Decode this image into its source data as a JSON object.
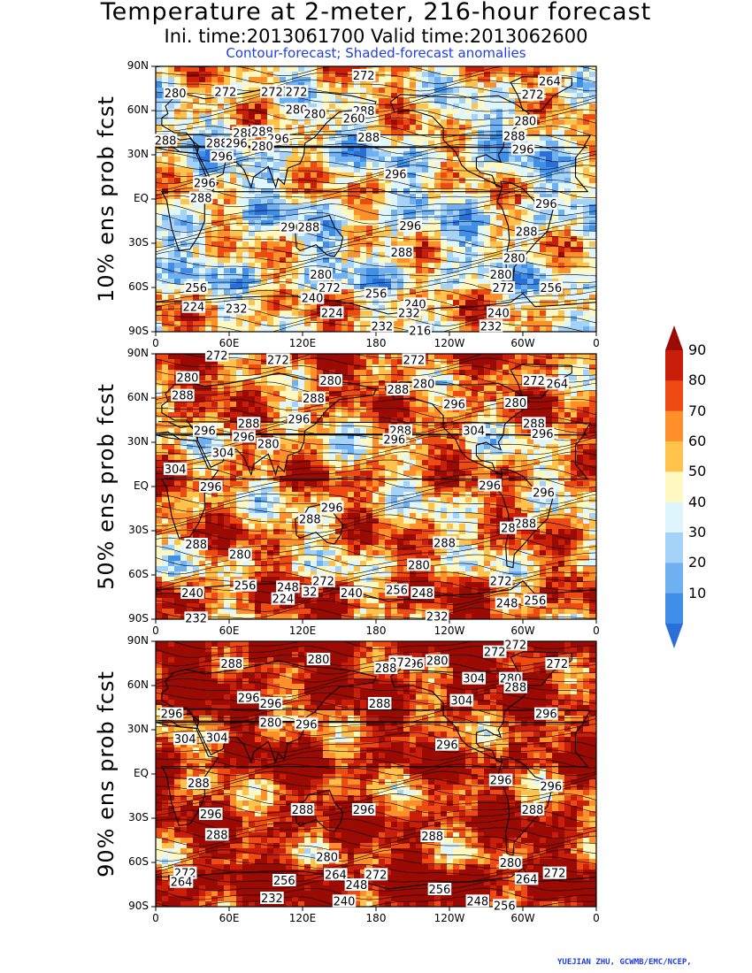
{
  "title": "Temperature at 2-meter, 216-hour forecast",
  "subtitle": "Ini. time:2013061700   Valid time:2013062600",
  "legend_note": "Contour-forecast; Shaded-forecast anomalies",
  "credit": "YUEJIAN ZHU, GCWMB/EMC/NCEP,",
  "lat_labels": [
    "90N",
    "60N",
    "30N",
    "EQ",
    "30S",
    "60S",
    "90S"
  ],
  "lon_labels": [
    "0",
    "60E",
    "120E",
    "180",
    "120W",
    "60W",
    "0"
  ],
  "colorbar": {
    "levels": [
      "10",
      "20",
      "30",
      "40",
      "50",
      "60",
      "70",
      "80",
      "90"
    ],
    "colors": [
      "#2a6fd8",
      "#3f8fe8",
      "#6fb0f2",
      "#a5d2f8",
      "#e0f6ff",
      "#fff8c0",
      "#ffc24a",
      "#ff8f2a",
      "#ee4a14",
      "#c81e0a",
      "#9c0a04"
    ]
  },
  "panels": [
    {
      "label": "10% ens prob fcst",
      "contour_labels": [
        {
          "text": "272",
          "lon": 170,
          "lat": 84
        },
        {
          "text": "264",
          "lon": 322,
          "lat": 80
        },
        {
          "text": "280",
          "lon": 16,
          "lat": 72
        },
        {
          "text": "272",
          "lon": 57,
          "lat": 73
        },
        {
          "text": "272",
          "lon": 95,
          "lat": 73
        },
        {
          "text": "272",
          "lon": 115,
          "lat": 73
        },
        {
          "text": "272",
          "lon": 308,
          "lat": 71
        },
        {
          "text": "280",
          "lon": 115,
          "lat": 61
        },
        {
          "text": "280",
          "lon": 130,
          "lat": 58
        },
        {
          "text": "288",
          "lon": 170,
          "lat": 60
        },
        {
          "text": "260",
          "lon": 162,
          "lat": 55
        },
        {
          "text": "280",
          "lon": 302,
          "lat": 53
        },
        {
          "text": "288",
          "lon": 72,
          "lat": 45
        },
        {
          "text": "288",
          "lon": 87,
          "lat": 46
        },
        {
          "text": "296",
          "lon": 100,
          "lat": 41
        },
        {
          "text": "288",
          "lon": 174,
          "lat": 42
        },
        {
          "text": "288",
          "lon": 293,
          "lat": 43
        },
        {
          "text": "288",
          "lon": 8,
          "lat": 40
        },
        {
          "text": "288",
          "lon": 50,
          "lat": 38
        },
        {
          "text": "296",
          "lon": 66,
          "lat": 38
        },
        {
          "text": "280",
          "lon": 87,
          "lat": 36
        },
        {
          "text": "296",
          "lon": 300,
          "lat": 34
        },
        {
          "text": "296",
          "lon": 54,
          "lat": 29
        },
        {
          "text": "296",
          "lon": 196,
          "lat": 17
        },
        {
          "text": "296",
          "lon": 40,
          "lat": 11
        },
        {
          "text": "288",
          "lon": 37,
          "lat": 1
        },
        {
          "text": "296",
          "lon": 319,
          "lat": -3
        },
        {
          "text": "296",
          "lon": 208,
          "lat": -18
        },
        {
          "text": "296",
          "lon": 111,
          "lat": -19
        },
        {
          "text": "288",
          "lon": 125,
          "lat": -19
        },
        {
          "text": "288",
          "lon": 303,
          "lat": -22
        },
        {
          "text": "288",
          "lon": 201,
          "lat": -36
        },
        {
          "text": "280",
          "lon": 293,
          "lat": -40
        },
        {
          "text": "280",
          "lon": 135,
          "lat": -51
        },
        {
          "text": "280",
          "lon": 282,
          "lat": -51
        },
        {
          "text": "256",
          "lon": 33,
          "lat": -60
        },
        {
          "text": "272",
          "lon": 142,
          "lat": -60
        },
        {
          "text": "272",
          "lon": 284,
          "lat": -60
        },
        {
          "text": "256",
          "lon": 323,
          "lat": -60
        },
        {
          "text": "240",
          "lon": 128,
          "lat": -67
        },
        {
          "text": "256",
          "lon": 180,
          "lat": -64
        },
        {
          "text": "240",
          "lon": 212,
          "lat": -71
        },
        {
          "text": "224",
          "lon": 31,
          "lat": -73
        },
        {
          "text": "232",
          "lon": 66,
          "lat": -74
        },
        {
          "text": "224",
          "lon": 144,
          "lat": -77
        },
        {
          "text": "232",
          "lon": 207,
          "lat": -77
        },
        {
          "text": "240",
          "lon": 280,
          "lat": -77
        },
        {
          "text": "232",
          "lon": 185,
          "lat": -86
        },
        {
          "text": "216",
          "lon": 216,
          "lat": -89
        },
        {
          "text": "232",
          "lon": 274,
          "lat": -86
        }
      ]
    },
    {
      "label": "50% ens prob fcst",
      "contour_labels": [
        {
          "text": "272",
          "lon": 50,
          "lat": 89
        },
        {
          "text": "272",
          "lon": 100,
          "lat": 86
        },
        {
          "text": "272",
          "lon": 211,
          "lat": 86
        },
        {
          "text": "280",
          "lon": 26,
          "lat": 74
        },
        {
          "text": "280",
          "lon": 143,
          "lat": 72
        },
        {
          "text": "272",
          "lon": 309,
          "lat": 72
        },
        {
          "text": "264",
          "lon": 328,
          "lat": 70
        },
        {
          "text": "280",
          "lon": 219,
          "lat": 70
        },
        {
          "text": "288",
          "lon": 198,
          "lat": 66
        },
        {
          "text": "288",
          "lon": 22,
          "lat": 62
        },
        {
          "text": "288",
          "lon": 129,
          "lat": 60
        },
        {
          "text": "296",
          "lon": 244,
          "lat": 56
        },
        {
          "text": "280",
          "lon": 294,
          "lat": 57
        },
        {
          "text": "296",
          "lon": 117,
          "lat": 46
        },
        {
          "text": "288",
          "lon": 76,
          "lat": 43
        },
        {
          "text": "288",
          "lon": 200,
          "lat": 38
        },
        {
          "text": "288",
          "lon": 309,
          "lat": 43
        },
        {
          "text": "304",
          "lon": 260,
          "lat": 38
        },
        {
          "text": "296",
          "lon": 40,
          "lat": 38
        },
        {
          "text": "296",
          "lon": 72,
          "lat": 34
        },
        {
          "text": "296",
          "lon": 195,
          "lat": 32
        },
        {
          "text": "296",
          "lon": 316,
          "lat": 36
        },
        {
          "text": "280",
          "lon": 92,
          "lat": 29
        },
        {
          "text": "304",
          "lon": 55,
          "lat": 23
        },
        {
          "text": "304",
          "lon": 16,
          "lat": 12
        },
        {
          "text": "296",
          "lon": 45,
          "lat": 0
        },
        {
          "text": "296",
          "lon": 273,
          "lat": 1
        },
        {
          "text": "296",
          "lon": 317,
          "lat": -4
        },
        {
          "text": "296",
          "lon": 144,
          "lat": -14
        },
        {
          "text": "288",
          "lon": 126,
          "lat": -22
        },
        {
          "text": "288",
          "lon": 302,
          "lat": -25
        },
        {
          "text": "28",
          "lon": 288,
          "lat": -28
        },
        {
          "text": "288",
          "lon": 33,
          "lat": -39
        },
        {
          "text": "288",
          "lon": 236,
          "lat": -38
        },
        {
          "text": "280",
          "lon": 69,
          "lat": -46
        },
        {
          "text": "280",
          "lon": 215,
          "lat": -53
        },
        {
          "text": "272",
          "lon": 282,
          "lat": -64
        },
        {
          "text": "272",
          "lon": 137,
          "lat": -64
        },
        {
          "text": "256",
          "lon": 73,
          "lat": -67
        },
        {
          "text": "248",
          "lon": 108,
          "lat": -68
        },
        {
          "text": "256",
          "lon": 197,
          "lat": -70
        },
        {
          "text": "248",
          "lon": 218,
          "lat": -72
        },
        {
          "text": "240",
          "lon": 30,
          "lat": -72
        },
        {
          "text": "240",
          "lon": 160,
          "lat": -72
        },
        {
          "text": "32",
          "lon": 126,
          "lat": -71
        },
        {
          "text": "224",
          "lon": 104,
          "lat": -76
        },
        {
          "text": "256",
          "lon": 310,
          "lat": -77
        },
        {
          "text": "248",
          "lon": 287,
          "lat": -79
        },
        {
          "text": "232",
          "lon": 33,
          "lat": -89
        },
        {
          "text": "232",
          "lon": 230,
          "lat": -88
        }
      ]
    },
    {
      "label": "90% ens prob fcst",
      "contour_labels": [
        {
          "text": "272",
          "lon": 294,
          "lat": 88
        },
        {
          "text": "272",
          "lon": 277,
          "lat": 83
        },
        {
          "text": "280",
          "lon": 133,
          "lat": 78
        },
        {
          "text": "280",
          "lon": 230,
          "lat": 77
        },
        {
          "text": "296",
          "lon": 210,
          "lat": 75
        },
        {
          "text": "272",
          "lon": 200,
          "lat": 76
        },
        {
          "text": "288",
          "lon": 62,
          "lat": 75
        },
        {
          "text": "288",
          "lon": 188,
          "lat": 72
        },
        {
          "text": "272",
          "lon": 328,
          "lat": 75
        },
        {
          "text": "304",
          "lon": 260,
          "lat": 65
        },
        {
          "text": "280",
          "lon": 290,
          "lat": 65
        },
        {
          "text": "288",
          "lon": 294,
          "lat": 59
        },
        {
          "text": "296",
          "lon": 76,
          "lat": 52
        },
        {
          "text": "296",
          "lon": 94,
          "lat": 48
        },
        {
          "text": "304",
          "lon": 250,
          "lat": 50
        },
        {
          "text": "288",
          "lon": 183,
          "lat": 48
        },
        {
          "text": "296",
          "lon": 13,
          "lat": 41
        },
        {
          "text": "296",
          "lon": 319,
          "lat": 41
        },
        {
          "text": "280",
          "lon": 94,
          "lat": 35
        },
        {
          "text": "296",
          "lon": 123,
          "lat": 34
        },
        {
          "text": "304",
          "lon": 24,
          "lat": 24
        },
        {
          "text": "304",
          "lon": 50,
          "lat": 25
        },
        {
          "text": "296",
          "lon": 238,
          "lat": 20
        },
        {
          "text": "288",
          "lon": 35,
          "lat": -6
        },
        {
          "text": "296",
          "lon": 282,
          "lat": -4
        },
        {
          "text": "296",
          "lon": 323,
          "lat": -8
        },
        {
          "text": "288",
          "lon": 120,
          "lat": -24
        },
        {
          "text": "296",
          "lon": 170,
          "lat": -24
        },
        {
          "text": "288",
          "lon": 308,
          "lat": -24
        },
        {
          "text": "296",
          "lon": 45,
          "lat": -27
        },
        {
          "text": "288",
          "lon": 50,
          "lat": -41
        },
        {
          "text": "288",
          "lon": 226,
          "lat": -42
        },
        {
          "text": "280",
          "lon": 140,
          "lat": -56
        },
        {
          "text": "280",
          "lon": 290,
          "lat": -60
        },
        {
          "text": "272",
          "lon": 24,
          "lat": -67
        },
        {
          "text": "264",
          "lon": 147,
          "lat": -68
        },
        {
          "text": "272",
          "lon": 180,
          "lat": -68
        },
        {
          "text": "272",
          "lon": 326,
          "lat": -67
        },
        {
          "text": "264",
          "lon": 303,
          "lat": -71
        },
        {
          "text": "256",
          "lon": 105,
          "lat": -72
        },
        {
          "text": "248",
          "lon": 164,
          "lat": -75
        },
        {
          "text": "256",
          "lon": 232,
          "lat": -78
        },
        {
          "text": "264",
          "lon": 21,
          "lat": -73
        },
        {
          "text": "232",
          "lon": 95,
          "lat": -84
        },
        {
          "text": "240",
          "lon": 154,
          "lat": -86
        },
        {
          "text": "248",
          "lon": 263,
          "lat": -86
        },
        {
          "text": "256",
          "lon": 285,
          "lat": -89
        }
      ]
    }
  ]
}
